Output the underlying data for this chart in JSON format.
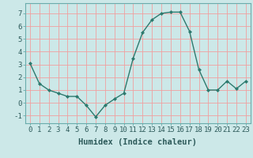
{
  "x": [
    0,
    1,
    2,
    3,
    4,
    5,
    6,
    7,
    8,
    9,
    10,
    11,
    12,
    13,
    14,
    15,
    16,
    17,
    18,
    19,
    20,
    21,
    22,
    23
  ],
  "y": [
    3.1,
    1.5,
    1.0,
    0.75,
    0.5,
    0.5,
    -0.2,
    -1.1,
    -0.2,
    0.3,
    0.75,
    3.5,
    5.5,
    6.5,
    7.0,
    7.1,
    7.1,
    5.6,
    2.6,
    1.0,
    1.0,
    1.7,
    1.1,
    1.7
  ],
  "line_color": "#2d7a6e",
  "marker": "D",
  "marker_size": 2.0,
  "linewidth": 1.0,
  "xlabel": "Humidex (Indice chaleur)",
  "xlim": [
    -0.5,
    23.5
  ],
  "ylim": [
    -1.6,
    7.8
  ],
  "yticks": [
    -1,
    0,
    1,
    2,
    3,
    4,
    5,
    6,
    7
  ],
  "xticks": [
    0,
    1,
    2,
    3,
    4,
    5,
    6,
    7,
    8,
    9,
    10,
    11,
    12,
    13,
    14,
    15,
    16,
    17,
    18,
    19,
    20,
    21,
    22,
    23
  ],
  "bg_color": "#cce8e8",
  "grid_color": "#f0a0a0",
  "xlabel_fontsize": 7.5,
  "tick_fontsize": 6.5
}
